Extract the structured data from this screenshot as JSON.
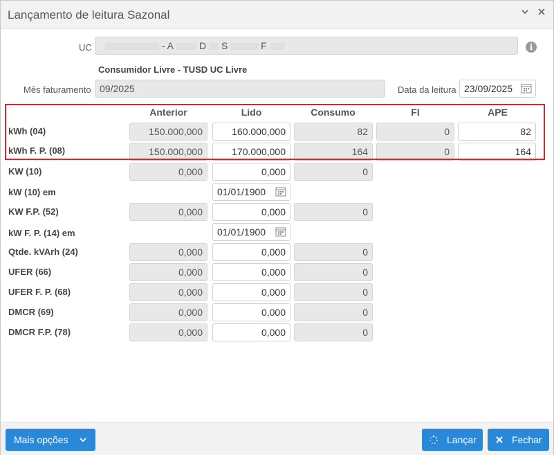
{
  "title": "Lançamento de leitura Sazonal",
  "titlebar": {
    "minimize_icon": "chevron-down-icon",
    "close_icon": "close-icon"
  },
  "uc": {
    "label": "UC",
    "parts": [
      "- A",
      "D",
      "S",
      "F"
    ]
  },
  "consumer_type": "Consumidor Livre - TUSD UC Livre",
  "mes_faturamento": {
    "label": "Mês faturamento",
    "value": "09/2025"
  },
  "data_leitura": {
    "label": "Data da leitura",
    "value": "23/09/2025"
  },
  "columns": [
    "Anterior",
    "Lido",
    "Consumo",
    "FI",
    "APE"
  ],
  "rows": [
    {
      "label": "kWh (04)",
      "anterior": "150.000,000",
      "lido": "160.000,000",
      "consumo": "82",
      "fi": "0",
      "ape": "82"
    },
    {
      "label": "kWh F. P. (08)",
      "anterior": "150.000,000",
      "lido": "170.000,000",
      "consumo": "164",
      "fi": "0",
      "ape": "164"
    },
    {
      "label": "KW (10)",
      "anterior": "0,000",
      "lido": "0,000",
      "consumo": "0"
    },
    {
      "label": "kW (10) em",
      "date": "01/01/1900"
    },
    {
      "label": "KW F.P. (52)",
      "anterior": "0,000",
      "lido": "0,000",
      "consumo": "0"
    },
    {
      "label": "kW F. P. (14) em",
      "date": "01/01/1900"
    },
    {
      "label": "Qtde. kVArh (24)",
      "anterior": "0,000",
      "lido": "0,000",
      "consumo": "0"
    },
    {
      "label": "UFER (66)",
      "anterior": "0,000",
      "lido": "0,000",
      "consumo": "0"
    },
    {
      "label": "UFER F. P. (68)",
      "anterior": "0,000",
      "lido": "0,000",
      "consumo": "0"
    },
    {
      "label": "DMCR (69)",
      "anterior": "0,000",
      "lido": "0,000",
      "consumo": "0"
    },
    {
      "label": "DMCR F.P. (78)",
      "anterior": "0,000",
      "lido": "0,000",
      "consumo": "0"
    }
  ],
  "footer": {
    "more_options": "Mais opções",
    "launch": "Lançar",
    "close": "Fechar"
  },
  "colors": {
    "accent": "#2a88d8",
    "highlight_border": "#d9232d"
  }
}
